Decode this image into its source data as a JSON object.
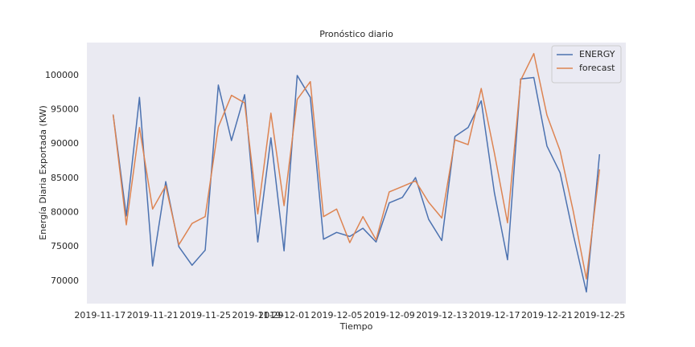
{
  "chart_data": {
    "type": "line",
    "title": "Pronóstico diario",
    "xlabel": "Tiempo",
    "ylabel": "Energía Diaria Exportada (KW)",
    "x": [
      "2019-11-18",
      "2019-11-19",
      "2019-11-20",
      "2019-11-21",
      "2019-11-22",
      "2019-11-23",
      "2019-11-24",
      "2019-11-25",
      "2019-11-26",
      "2019-11-27",
      "2019-11-28",
      "2019-11-29",
      "2019-11-30",
      "2019-12-01",
      "2019-12-02",
      "2019-12-03",
      "2019-12-04",
      "2019-12-05",
      "2019-12-06",
      "2019-12-07",
      "2019-12-08",
      "2019-12-09",
      "2019-12-10",
      "2019-12-11",
      "2019-12-12",
      "2019-12-13",
      "2019-12-14",
      "2019-12-15",
      "2019-12-16",
      "2019-12-17",
      "2019-12-18",
      "2019-12-19",
      "2019-12-20",
      "2019-12-21",
      "2019-12-22",
      "2019-12-23",
      "2019-12-24",
      "2019-12-25"
    ],
    "series": [
      {
        "name": "ENERGY",
        "color": "#4c72b0",
        "values": [
          94300,
          79500,
          96800,
          72200,
          84500,
          75000,
          72300,
          74500,
          98600,
          90500,
          97200,
          75700,
          90900,
          74400,
          100000,
          96800,
          76100,
          77100,
          76500,
          77700,
          75700,
          81400,
          82200,
          85100,
          79000,
          75900,
          91100,
          92400,
          96300,
          82900,
          73100,
          99500,
          99700,
          89700,
          85800,
          76800,
          68400,
          88500
        ]
      },
      {
        "name": "forecast",
        "color": "#dd8452",
        "values": [
          94300,
          78200,
          92400,
          80500,
          83900,
          75300,
          78400,
          79400,
          92500,
          97100,
          96000,
          79800,
          94500,
          81000,
          96500,
          99100,
          79400,
          80500,
          75600,
          79400,
          76000,
          83000,
          83800,
          84600,
          81500,
          79200,
          90600,
          89900,
          98100,
          88700,
          78500,
          99300,
          103200,
          94200,
          89000,
          80200,
          70300,
          86300
        ]
      }
    ],
    "xlim": [
      "2019-11-16",
      "2019-12-27"
    ],
    "xticks": [
      "2019-11-17",
      "2019-11-21",
      "2019-11-25",
      "2019-11-29",
      "2019-12-01",
      "2019-12-05",
      "2019-12-09",
      "2019-12-13",
      "2019-12-17",
      "2019-12-21",
      "2019-12-25"
    ],
    "ylim": [
      66700,
      104800
    ],
    "yticks": [
      70000,
      75000,
      80000,
      85000,
      90000,
      95000,
      100000
    ],
    "grid": false,
    "legend": "upper right"
  }
}
